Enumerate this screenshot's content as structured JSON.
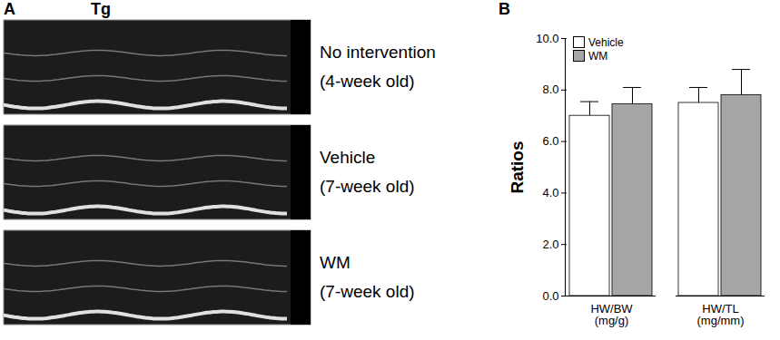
{
  "panel_a": {
    "panel_label": "A",
    "group": "Tg",
    "strips": [
      {
        "label": "No intervention",
        "age": "(4-week old)"
      },
      {
        "label": "Vehicle",
        "age": "(7-week old)"
      },
      {
        "label": "WM",
        "age": "(7-week old)"
      }
    ]
  },
  "chart_data": {
    "type": "bar",
    "title": "B",
    "categories": [
      "HW/BW\n(mg/g)",
      "HW/TL\n(mg/mm)"
    ],
    "y_label": "Ratios",
    "series": [
      {
        "name": "Vehicle",
        "color": "#ffffff",
        "values": [
          7.0,
          7.5
        ],
        "errors": [
          0.55,
          0.6
        ]
      },
      {
        "name": "WM",
        "color": "#a6a6a6",
        "values": [
          7.45,
          7.8
        ],
        "errors": [
          0.65,
          1.0
        ]
      }
    ],
    "ylim": [
      0,
      10
    ],
    "yticks": [
      {
        "value": 0,
        "label": "0.0"
      },
      {
        "value": 2,
        "label": "2.0"
      },
      {
        "value": 4,
        "label": "4.0"
      },
      {
        "value": 6,
        "label": "6.0"
      },
      {
        "value": 8,
        "label": "8.0"
      },
      {
        "value": 10,
        "label": "10.0"
      }
    ],
    "grid": false,
    "legend": "upper left"
  }
}
